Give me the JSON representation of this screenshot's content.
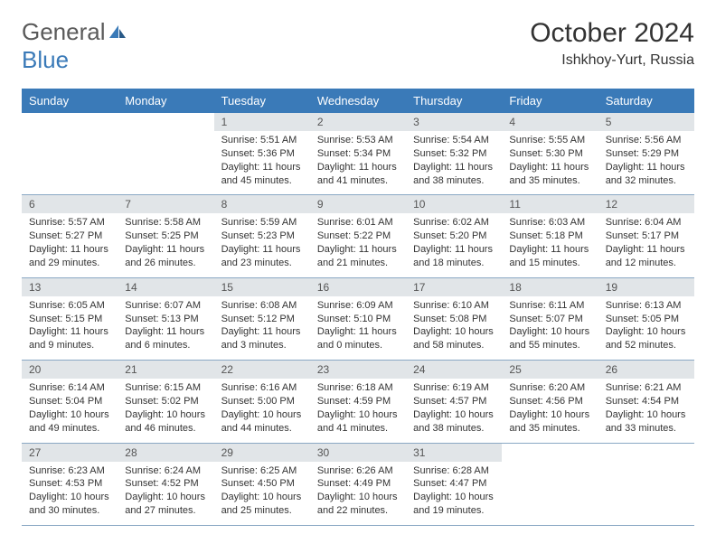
{
  "logo": {
    "text_gray": "General",
    "text_blue": "Blue"
  },
  "title": "October 2024",
  "location": "Ishkhoy-Yurt, Russia",
  "colors": {
    "header_bg": "#3a7ab8",
    "header_text": "#ffffff",
    "daynum_bg": "#e1e5e8",
    "row_border": "#8aa8c4"
  },
  "weekdays": [
    "Sunday",
    "Monday",
    "Tuesday",
    "Wednesday",
    "Thursday",
    "Friday",
    "Saturday"
  ],
  "days": [
    null,
    null,
    {
      "n": "1",
      "sr": "5:51 AM",
      "ss": "5:36 PM",
      "dl": "11 hours and 45 minutes."
    },
    {
      "n": "2",
      "sr": "5:53 AM",
      "ss": "5:34 PM",
      "dl": "11 hours and 41 minutes."
    },
    {
      "n": "3",
      "sr": "5:54 AM",
      "ss": "5:32 PM",
      "dl": "11 hours and 38 minutes."
    },
    {
      "n": "4",
      "sr": "5:55 AM",
      "ss": "5:30 PM",
      "dl": "11 hours and 35 minutes."
    },
    {
      "n": "5",
      "sr": "5:56 AM",
      "ss": "5:29 PM",
      "dl": "11 hours and 32 minutes."
    },
    {
      "n": "6",
      "sr": "5:57 AM",
      "ss": "5:27 PM",
      "dl": "11 hours and 29 minutes."
    },
    {
      "n": "7",
      "sr": "5:58 AM",
      "ss": "5:25 PM",
      "dl": "11 hours and 26 minutes."
    },
    {
      "n": "8",
      "sr": "5:59 AM",
      "ss": "5:23 PM",
      "dl": "11 hours and 23 minutes."
    },
    {
      "n": "9",
      "sr": "6:01 AM",
      "ss": "5:22 PM",
      "dl": "11 hours and 21 minutes."
    },
    {
      "n": "10",
      "sr": "6:02 AM",
      "ss": "5:20 PM",
      "dl": "11 hours and 18 minutes."
    },
    {
      "n": "11",
      "sr": "6:03 AM",
      "ss": "5:18 PM",
      "dl": "11 hours and 15 minutes."
    },
    {
      "n": "12",
      "sr": "6:04 AM",
      "ss": "5:17 PM",
      "dl": "11 hours and 12 minutes."
    },
    {
      "n": "13",
      "sr": "6:05 AM",
      "ss": "5:15 PM",
      "dl": "11 hours and 9 minutes."
    },
    {
      "n": "14",
      "sr": "6:07 AM",
      "ss": "5:13 PM",
      "dl": "11 hours and 6 minutes."
    },
    {
      "n": "15",
      "sr": "6:08 AM",
      "ss": "5:12 PM",
      "dl": "11 hours and 3 minutes."
    },
    {
      "n": "16",
      "sr": "6:09 AM",
      "ss": "5:10 PM",
      "dl": "11 hours and 0 minutes."
    },
    {
      "n": "17",
      "sr": "6:10 AM",
      "ss": "5:08 PM",
      "dl": "10 hours and 58 minutes."
    },
    {
      "n": "18",
      "sr": "6:11 AM",
      "ss": "5:07 PM",
      "dl": "10 hours and 55 minutes."
    },
    {
      "n": "19",
      "sr": "6:13 AM",
      "ss": "5:05 PM",
      "dl": "10 hours and 52 minutes."
    },
    {
      "n": "20",
      "sr": "6:14 AM",
      "ss": "5:04 PM",
      "dl": "10 hours and 49 minutes."
    },
    {
      "n": "21",
      "sr": "6:15 AM",
      "ss": "5:02 PM",
      "dl": "10 hours and 46 minutes."
    },
    {
      "n": "22",
      "sr": "6:16 AM",
      "ss": "5:00 PM",
      "dl": "10 hours and 44 minutes."
    },
    {
      "n": "23",
      "sr": "6:18 AM",
      "ss": "4:59 PM",
      "dl": "10 hours and 41 minutes."
    },
    {
      "n": "24",
      "sr": "6:19 AM",
      "ss": "4:57 PM",
      "dl": "10 hours and 38 minutes."
    },
    {
      "n": "25",
      "sr": "6:20 AM",
      "ss": "4:56 PM",
      "dl": "10 hours and 35 minutes."
    },
    {
      "n": "26",
      "sr": "6:21 AM",
      "ss": "4:54 PM",
      "dl": "10 hours and 33 minutes."
    },
    {
      "n": "27",
      "sr": "6:23 AM",
      "ss": "4:53 PM",
      "dl": "10 hours and 30 minutes."
    },
    {
      "n": "28",
      "sr": "6:24 AM",
      "ss": "4:52 PM",
      "dl": "10 hours and 27 minutes."
    },
    {
      "n": "29",
      "sr": "6:25 AM",
      "ss": "4:50 PM",
      "dl": "10 hours and 25 minutes."
    },
    {
      "n": "30",
      "sr": "6:26 AM",
      "ss": "4:49 PM",
      "dl": "10 hours and 22 minutes."
    },
    {
      "n": "31",
      "sr": "6:28 AM",
      "ss": "4:47 PM",
      "dl": "10 hours and 19 minutes."
    },
    null,
    null
  ],
  "labels": {
    "sunrise": "Sunrise:",
    "sunset": "Sunset:",
    "daylight": "Daylight:"
  }
}
